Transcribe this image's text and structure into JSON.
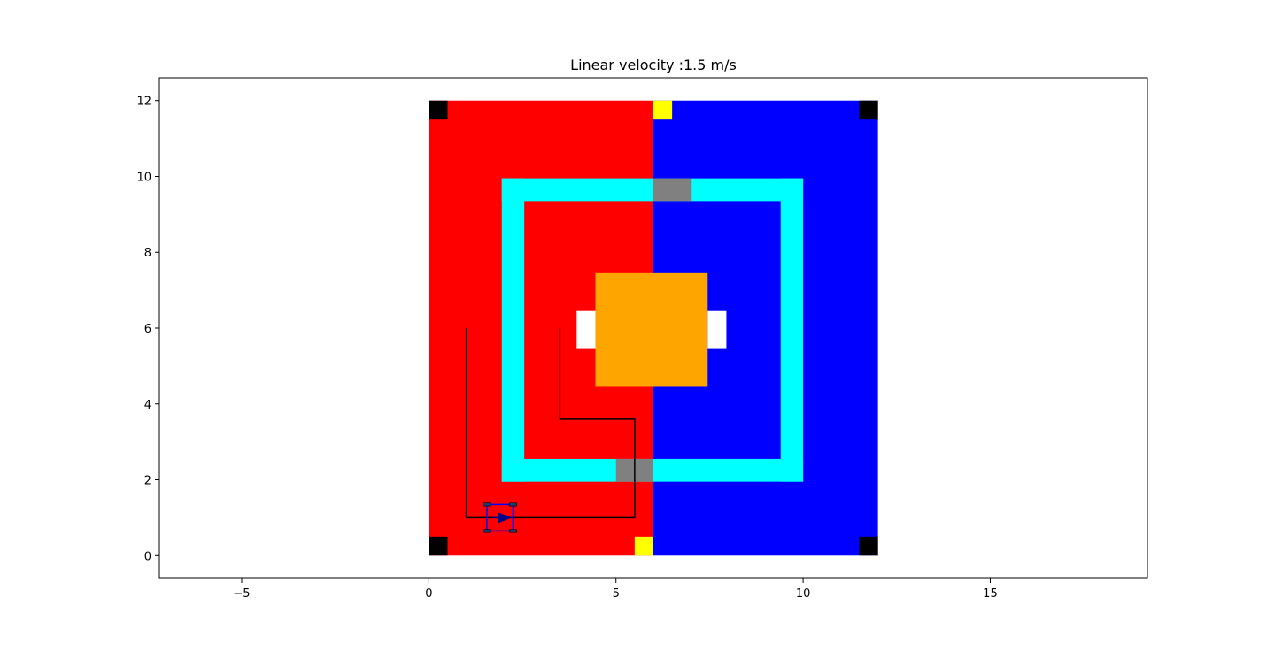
{
  "chart_data": {
    "type": "map",
    "title": "Linear velocity :1.5 m/s",
    "xlabel": "",
    "ylabel": "",
    "xlim": [
      -7.2,
      19.2
    ],
    "ylim": [
      -0.6,
      12.6
    ],
    "grid": false,
    "xticks": [
      -5,
      0,
      5,
      10,
      15
    ],
    "yticks": [
      0,
      2,
      4,
      6,
      8,
      10,
      12
    ],
    "xtick_labels": [
      "−5",
      "0",
      "5",
      "10",
      "15"
    ],
    "ytick_labels": [
      "0",
      "2",
      "4",
      "6",
      "8",
      "10",
      "12"
    ],
    "regions": [
      {
        "name": "red-zone",
        "x0": 0,
        "y0": 0,
        "x1": 6,
        "y1": 12,
        "color": "#ff0000"
      },
      {
        "name": "blue-zone",
        "x0": 6,
        "y0": 0,
        "x1": 12,
        "y1": 12,
        "color": "#0000ff"
      },
      {
        "name": "cyan-ring-top",
        "x0": 1.95,
        "y0": 9.35,
        "x1": 10,
        "y1": 9.95,
        "color": "#00ffff"
      },
      {
        "name": "cyan-ring-bottom",
        "x0": 1.95,
        "y0": 1.95,
        "x1": 10,
        "y1": 2.55,
        "color": "#00ffff"
      },
      {
        "name": "cyan-ring-left",
        "x0": 1.95,
        "y0": 1.95,
        "x1": 2.55,
        "y1": 9.95,
        "color": "#00ffff"
      },
      {
        "name": "cyan-ring-right",
        "x0": 9.4,
        "y0": 1.95,
        "x1": 10,
        "y1": 9.95,
        "color": "#00ffff"
      },
      {
        "name": "gray-gate-top",
        "x0": 6,
        "y0": 9.35,
        "x1": 7,
        "y1": 9.95,
        "color": "#808080"
      },
      {
        "name": "gray-gate-bottom",
        "x0": 5,
        "y0": 1.95,
        "x1": 6,
        "y1": 2.55,
        "color": "#808080"
      },
      {
        "name": "white-block-left",
        "x0": 3.95,
        "y0": 5.45,
        "x1": 4.45,
        "y1": 6.45,
        "color": "#ffffff"
      },
      {
        "name": "white-block-right",
        "x0": 7.45,
        "y0": 5.45,
        "x1": 7.95,
        "y1": 6.45,
        "color": "#ffffff"
      },
      {
        "name": "orange-center",
        "x0": 4.45,
        "y0": 4.45,
        "x1": 7.45,
        "y1": 7.45,
        "color": "#ffa500"
      },
      {
        "name": "yellow-marker-top",
        "x0": 6,
        "y0": 11.5,
        "x1": 6.5,
        "y1": 12,
        "color": "#ffff00"
      },
      {
        "name": "yellow-marker-bottom",
        "x0": 5.5,
        "y0": 0,
        "x1": 6,
        "y1": 0.5,
        "color": "#ffff00"
      },
      {
        "name": "black-corner-top-left",
        "x0": 0,
        "y0": 11.5,
        "x1": 0.5,
        "y1": 12,
        "color": "#000000"
      },
      {
        "name": "black-corner-top-right",
        "x0": 11.5,
        "y0": 11.5,
        "x1": 12,
        "y1": 12,
        "color": "#000000"
      },
      {
        "name": "black-corner-bottom-left",
        "x0": 0,
        "y0": 0,
        "x1": 0.5,
        "y1": 0.5,
        "color": "#000000"
      },
      {
        "name": "black-corner-bottom-right",
        "x0": 11.5,
        "y0": 0,
        "x1": 12,
        "y1": 0.5,
        "color": "#000000"
      }
    ],
    "paths": [
      {
        "name": "planned-path",
        "color": "#000000",
        "x": [
          1.0,
          1.0,
          5.5,
          5.5,
          3.5,
          3.5
        ],
        "y": [
          6.0,
          1.0,
          1.0,
          3.6,
          3.6,
          6.0
        ]
      }
    ],
    "robot": {
      "x": 1.9,
      "y": 1.0,
      "heading_deg": 0,
      "body_color": "#0000ff",
      "arrow_color": "#00008b",
      "wheel_color": "#1f3a6e"
    }
  }
}
